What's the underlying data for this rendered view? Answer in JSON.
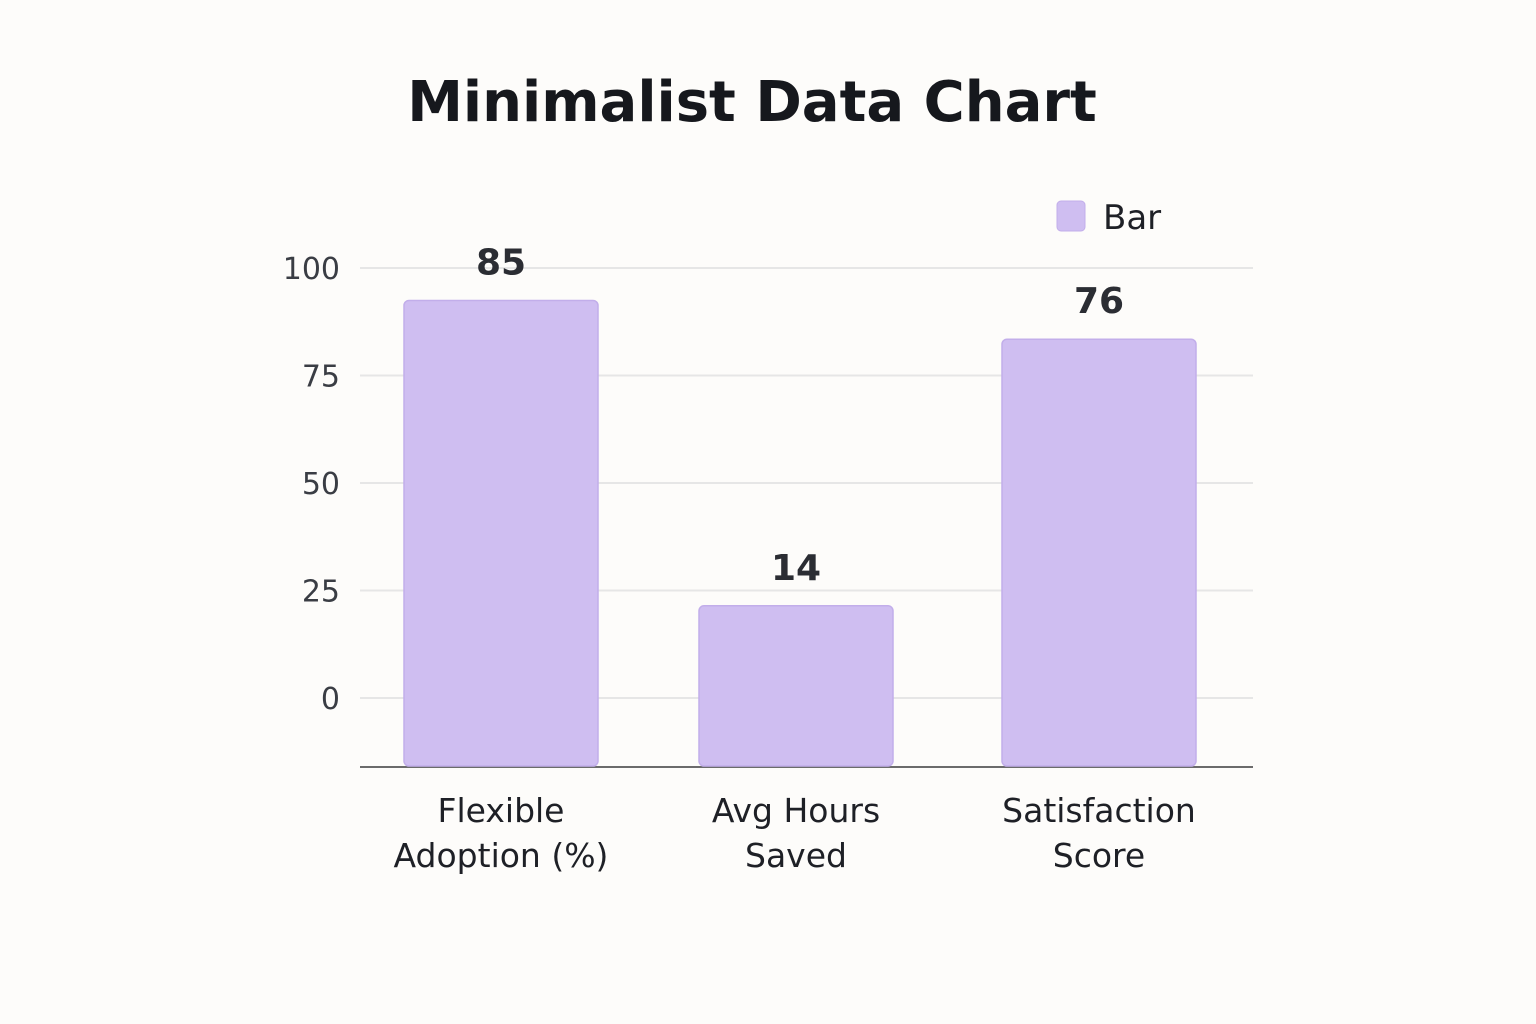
{
  "chart_data": {
    "type": "bar",
    "title": "Minimalist Data Chart",
    "categories": [
      [
        "Flexible",
        "Adoption (%)"
      ],
      [
        "Avg Hours",
        "Saved"
      ],
      [
        "Satisfaction",
        "Score"
      ]
    ],
    "series": [
      {
        "name": "Bar",
        "values": [
          85,
          14,
          76
        ],
        "color": "#cfbef1"
      }
    ],
    "yticks": [
      0,
      25,
      50,
      75,
      100
    ],
    "ylim": [
      0,
      100
    ],
    "grid": true,
    "legend": "top-right",
    "xlabel": "",
    "ylabel": ""
  }
}
